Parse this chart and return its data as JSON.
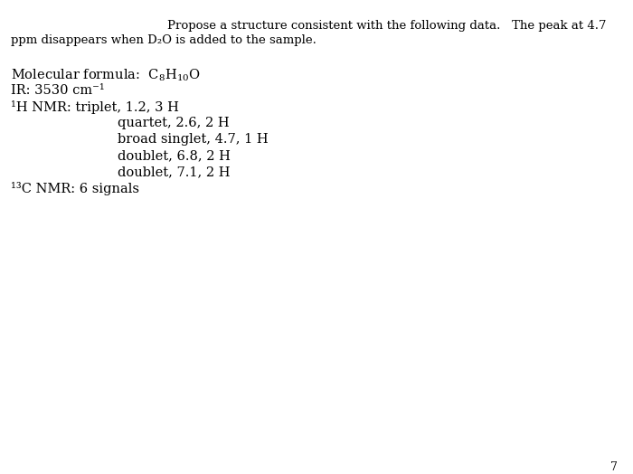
{
  "background_color": "#ffffff",
  "page_number": "7",
  "title_line1": "Propose a structure consistent with the following data.   The peak at 4.7",
  "title_line2": "ppm disappears when D₂O is added to the sample.",
  "ir_line": "IR: 3530 cm⁻¹",
  "hnmr_first": "¹H NMR: triplet, 1.2, 3 H",
  "hnmr_lines": [
    "quartet, 2.6, 2 H",
    "broad singlet, 4.7, 1 H",
    "doublet, 6.8, 2 H",
    "doublet, 7.1, 2 H"
  ],
  "cnmr_label": "¹³C NMR: 6 signals",
  "font_size_title": 9.5,
  "font_size_body": 10.5,
  "font_family": "DejaVu Serif"
}
